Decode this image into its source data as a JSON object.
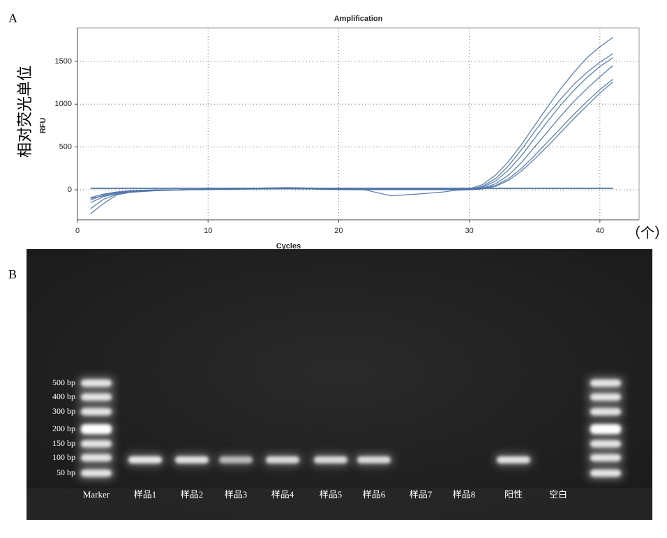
{
  "panel_a": {
    "label": "A",
    "y_label_cn": "相对荧光单位",
    "x_unit_cn": "（个）"
  },
  "chart_data": {
    "type": "line",
    "title": "Amplification",
    "x_label": "Cycles",
    "y_label": "RFU",
    "color": "#4f74a8",
    "grid": true,
    "xlim": [
      0,
      43
    ],
    "ylim": [
      -350,
      1890
    ],
    "xticks": [
      0,
      10,
      20,
      30,
      40
    ],
    "yticks": [
      0,
      500,
      1000,
      1500
    ],
    "x": [
      1,
      2,
      3,
      4,
      6,
      8,
      10,
      12,
      14,
      16,
      18,
      20,
      22,
      24,
      26,
      28,
      29,
      30,
      31,
      32,
      33,
      34,
      35,
      36,
      37,
      38,
      39,
      40,
      41
    ],
    "series": [
      {
        "values": [
          -100,
          -70,
          -40,
          -20,
          -5,
          0,
          5,
          8,
          12,
          15,
          10,
          5,
          5,
          5,
          5,
          5,
          8,
          10,
          60,
          170,
          330,
          530,
          750,
          970,
          1180,
          1370,
          1540,
          1670,
          1780
        ]
      },
      {
        "values": [
          -280,
          -160,
          -60,
          -30,
          -10,
          0,
          5,
          10,
          15,
          20,
          15,
          5,
          5,
          5,
          5,
          5,
          5,
          5,
          40,
          130,
          280,
          470,
          680,
          880,
          1060,
          1230,
          1370,
          1490,
          1590
        ]
      },
      {
        "values": [
          -220,
          -110,
          -50,
          -25,
          -10,
          0,
          5,
          10,
          20,
          25,
          20,
          10,
          5,
          5,
          5,
          5,
          5,
          5,
          30,
          100,
          230,
          400,
          600,
          800,
          990,
          1160,
          1310,
          1440,
          1540
        ]
      },
      {
        "values": [
          -150,
          -80,
          -40,
          -20,
          -5,
          0,
          5,
          8,
          12,
          15,
          10,
          5,
          0,
          -70,
          -50,
          -25,
          -5,
          5,
          20,
          70,
          170,
          320,
          500,
          680,
          860,
          1030,
          1180,
          1320,
          1450
        ]
      },
      {
        "values": [
          -120,
          -60,
          -30,
          -15,
          -5,
          0,
          5,
          8,
          10,
          12,
          10,
          5,
          5,
          5,
          5,
          5,
          0,
          0,
          15,
          50,
          130,
          250,
          400,
          560,
          720,
          880,
          1030,
          1170,
          1290
        ]
      },
      {
        "values": [
          -90,
          -50,
          -25,
          -10,
          0,
          0,
          5,
          8,
          10,
          12,
          10,
          5,
          5,
          5,
          5,
          5,
          0,
          0,
          10,
          40,
          110,
          220,
          360,
          510,
          670,
          830,
          980,
          1130,
          1260
        ]
      },
      {
        "values": [
          20,
          20,
          20,
          20,
          20,
          20,
          20,
          20,
          20,
          20,
          20,
          20,
          20,
          20,
          20,
          20,
          20,
          20,
          20,
          20,
          20,
          20,
          20,
          20,
          20,
          20,
          20,
          20,
          20
        ]
      },
      {
        "values": [
          15,
          15,
          15,
          15,
          15,
          15,
          15,
          15,
          15,
          15,
          15,
          15,
          15,
          15,
          15,
          15,
          15,
          15,
          15,
          15,
          15,
          15,
          15,
          15,
          15,
          15,
          15,
          15,
          15
        ]
      }
    ]
  },
  "panel_b": {
    "label": "B",
    "marker_sizes": [
      "500 bp",
      "400 bp",
      "300 bp",
      "200 bp",
      "150 bp",
      "100 bp",
      "50 bp"
    ],
    "lanes": [
      "Marker",
      "样品1",
      "样品2",
      "样品3",
      "样品4",
      "样品5",
      "样品6",
      "样品7",
      "样品8",
      "阳性",
      "空白"
    ]
  }
}
